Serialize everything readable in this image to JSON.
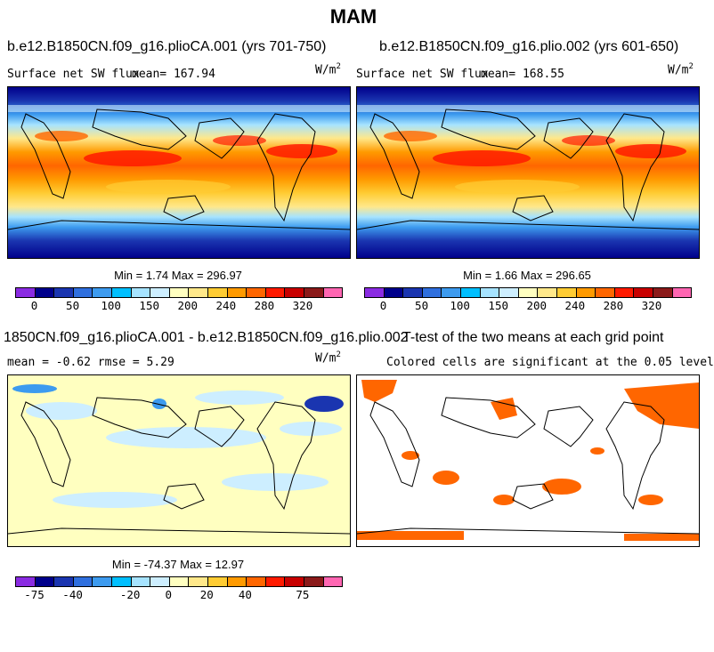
{
  "page_title": "MAM",
  "units_label": "W/m",
  "units_exp": "2",
  "panels": {
    "tl": {
      "title": "b.e12.B1850CN.f09_g16.plioCA.001 (yrs 701-750)",
      "left_label": "Surface net SW flux",
      "mean_label": "mean= 167.94",
      "minmax": "Min =   1.74 Max = 296.97"
    },
    "tr": {
      "title": "b.e12.B1850CN.f09_g16.plio.002 (yrs 601-650)",
      "left_label": "Surface net SW flux",
      "mean_label": "mean= 168.55",
      "minmax": "Min =   1.66 Max = 296.65"
    },
    "bl": {
      "title": "1850CN.f09_g16.plioCA.001 - b.e12.B1850CN.f09_g16.plio.002",
      "stats": "mean =  -0.62     rmse =   5.29",
      "minmax": "Min = -74.37 Max =  12.97"
    },
    "br": {
      "title": "T-test of the two means at each grid point",
      "subtitle": "Colored cells are significant at the 0.05 level"
    }
  },
  "colorbar_top": {
    "colors": [
      "#8a2be2",
      "#00008b",
      "#1a35b0",
      "#2f6fde",
      "#3d9bef",
      "#00bfff",
      "#a6e3ff",
      "#cdeeff",
      "#ffffc0",
      "#ffe88a",
      "#ffcc33",
      "#ff9a00",
      "#ff6600",
      "#ff1a00",
      "#c80000",
      "#8b1a1a",
      "#ff66b2"
    ],
    "ticks": [
      "0",
      "50",
      "100",
      "150",
      "200",
      "240",
      "280",
      "320"
    ]
  },
  "colorbar_bottom": {
    "colors": [
      "#8a2be2",
      "#00008b",
      "#1a35b0",
      "#2f6fde",
      "#3d9bef",
      "#00bfff",
      "#a6e3ff",
      "#cdeeff",
      "#ffffc0",
      "#ffe88a",
      "#ffcc33",
      "#ff9a00",
      "#ff6600",
      "#ff1a00",
      "#c80000",
      "#8b1a1a",
      "#ff66b2"
    ],
    "ticks": [
      "-75",
      "-40",
      "-20",
      "0",
      "20",
      "40",
      "75"
    ]
  }
}
